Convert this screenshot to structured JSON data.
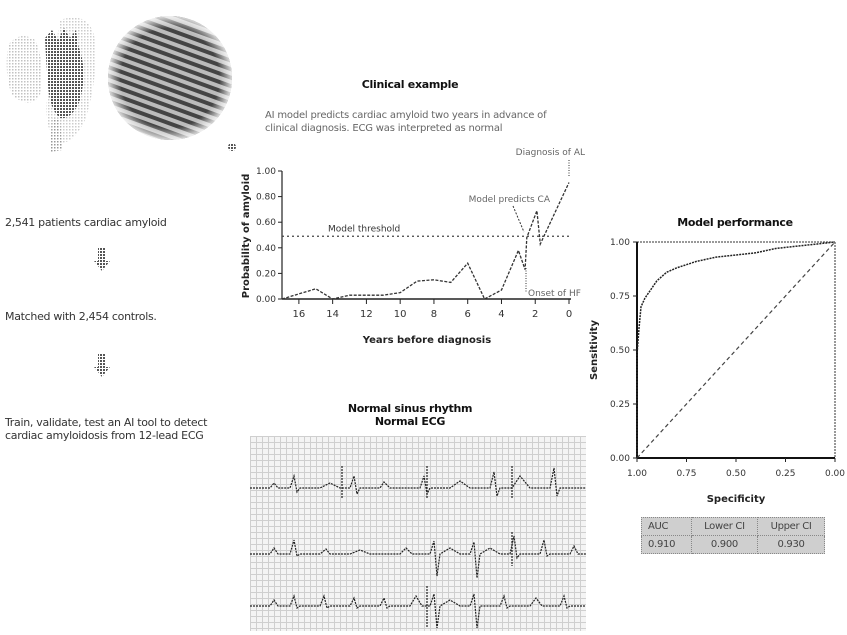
{
  "illustrations": {
    "heart_label": "heart-illustration",
    "tissue_label": "amyloid-tissue-micrograph"
  },
  "flow": {
    "step1": "2,541 patients cardiac amyloid",
    "step2": "Matched with 2,454 controls.",
    "step3_line1": "Train, validate, test an AI tool to detect",
    "step3_line2": "cardiac amyloidosis from 12-lead ECG",
    "arrow_icon": "down-arrow-icon"
  },
  "clinical": {
    "title": "Clinical example",
    "subtitle_line1": "AI model predicts cardiac amyloid two years in advance of",
    "subtitle_line2": "clinical diagnosis. ECG was interpreted as normal"
  },
  "ecg": {
    "title_line1": "Normal sinus rhythm",
    "title_line2": "Normal ECG"
  },
  "roc": {
    "title": "Model performance"
  },
  "performance_table": {
    "headers": [
      "AUC",
      "Lower CI",
      "Upper CI"
    ],
    "values": [
      "0.910",
      "0.900",
      "0.930"
    ]
  },
  "chart_data": [
    {
      "type": "line",
      "title": "Clinical example",
      "xlabel": "Years before diagnosis",
      "ylabel": "Probability of amyloid",
      "x_ticks": [
        "16",
        "14",
        "12",
        "10",
        "8",
        "6",
        "4",
        "2",
        "0"
      ],
      "y_ticks": [
        "0.00",
        "0.20",
        "0.40",
        "0.60",
        "0.80",
        "1.00"
      ],
      "xlim": [
        17,
        0
      ],
      "ylim": [
        0,
        1
      ],
      "grid": false,
      "series": [
        {
          "name": "Probability of amyloid",
          "x": [
            17,
            15,
            14,
            13,
            11,
            10,
            9,
            8,
            7,
            6,
            5,
            4,
            3,
            2.6,
            2.5,
            1.9,
            1.7,
            0
          ],
          "values": [
            0.0,
            0.08,
            0.0,
            0.03,
            0.03,
            0.05,
            0.14,
            0.15,
            0.13,
            0.28,
            0.0,
            0.07,
            0.38,
            0.23,
            0.48,
            0.69,
            0.43,
            0.91
          ]
        }
      ],
      "threshold": {
        "label": "Model threshold",
        "value": 0.49
      },
      "annotations": [
        {
          "text": "Diagnosis of AL",
          "x": 0,
          "y": 1.0
        },
        {
          "text": "Model predicts CA",
          "x": 2.5,
          "y": 0.48
        },
        {
          "text": "Onset of HF",
          "x": 2.6,
          "y": 0.0
        }
      ]
    },
    {
      "type": "line",
      "title": "Model performance",
      "xlabel": "Specificity",
      "ylabel": "Sensitivity",
      "x_ticks": [
        "1.00",
        "0.75",
        "0.50",
        "0.25",
        "0.00"
      ],
      "y_ticks": [
        "0.00",
        "0.25",
        "0.50",
        "0.75",
        "1.00"
      ],
      "xlim": [
        1,
        0
      ],
      "ylim": [
        0,
        1
      ],
      "grid": false,
      "series": [
        {
          "name": "ROC curve",
          "specificity": [
            1.0,
            1.0,
            0.99,
            0.98,
            0.96,
            0.93,
            0.9,
            0.85,
            0.8,
            0.7,
            0.6,
            0.5,
            0.4,
            0.3,
            0.2,
            0.1,
            0.0
          ],
          "sensitivity": [
            0.0,
            0.48,
            0.6,
            0.7,
            0.74,
            0.78,
            0.82,
            0.86,
            0.88,
            0.91,
            0.93,
            0.94,
            0.95,
            0.97,
            0.98,
            0.99,
            1.0
          ]
        },
        {
          "name": "Reference line",
          "specificity": [
            1.0,
            0.0
          ],
          "sensitivity": [
            0.0,
            1.0
          ]
        }
      ],
      "table": {
        "headers": [
          "AUC",
          "Lower CI",
          "Upper CI"
        ],
        "values": [
          0.91,
          0.9,
          0.93
        ]
      }
    }
  ]
}
